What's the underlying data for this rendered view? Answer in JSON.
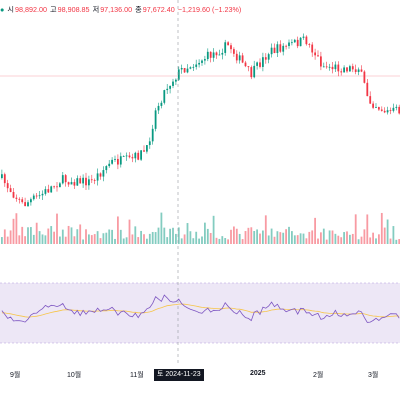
{
  "legend": {
    "open_label": "시",
    "open": "98,892.00",
    "high_label": "고",
    "high": "98,908.85",
    "low_label": "저",
    "low": "97,136.00",
    "close_label": "종",
    "close": "97,672.40",
    "change": "−1,219.60 (−1.23%)"
  },
  "x_axis": {
    "ticks": [
      {
        "label": "9월",
        "bold": false
      },
      {
        "label": "10월",
        "bold": false
      },
      {
        "label": "11월",
        "bold": false
      },
      {
        "label": "2025",
        "bold": true
      },
      {
        "label": "2월",
        "bold": false
      },
      {
        "label": "3월",
        "bold": false
      }
    ],
    "crosshair_label": "토 2024-11-23"
  },
  "colors": {
    "up": "#089981",
    "down": "#f23645",
    "rsi_line": "#7e57c2",
    "rsi_ma": "#f7c548",
    "rsi_band": "#ede7f6",
    "crosshair": "#9598a1",
    "reference_line": "#f7a6ae"
  },
  "chart_data": {
    "type": "candlestick",
    "price_range": [
      54000,
      109000
    ],
    "volume_bars": "on",
    "rsi_panel": {
      "bands": [
        30,
        70
      ]
    }
  }
}
